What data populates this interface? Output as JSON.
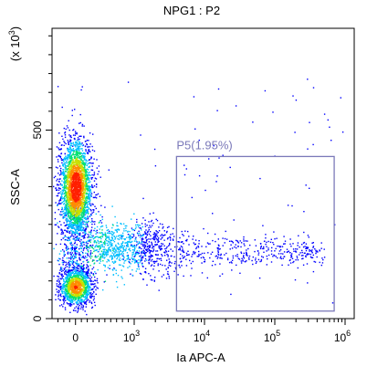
{
  "chart_data": {
    "type": "scatter",
    "title": "NPG1 : P2",
    "xlabel": "Ia APC-A",
    "ylabel": "SSC-A",
    "y_multiplier": "(x 10",
    "y_multiplier_exp": "3",
    "y_multiplier_close": ")",
    "x_scale": "biexponential",
    "y_scale": "linear",
    "xlim": [
      -400,
      1000000
    ],
    "ylim": [
      0,
      770
    ],
    "x_ticks": [
      {
        "value": 0,
        "base": "0",
        "exp": ""
      },
      {
        "value": 1000,
        "base": "10",
        "exp": "3"
      },
      {
        "value": 10000,
        "base": "10",
        "exp": "4"
      },
      {
        "value": 100000,
        "base": "10",
        "exp": "5"
      },
      {
        "value": 1000000,
        "base": "10",
        "exp": "6"
      }
    ],
    "y_ticks": [
      {
        "value": 0,
        "label": "0"
      },
      {
        "value": 500,
        "label": "500"
      }
    ],
    "populations": [
      {
        "name": "upper cluster",
        "x_center": 0,
        "y_center": 350,
        "count": 2600,
        "color_scale": "density"
      },
      {
        "name": "lower cluster",
        "x_center": 0,
        "y_center": 85,
        "count": 1300,
        "color_scale": "density"
      },
      {
        "name": "bridge",
        "x_from": 200,
        "x_to": 3000,
        "y_center": 190,
        "count": 900,
        "color_scale": "density"
      },
      {
        "name": "positive tail",
        "x_from": 3000,
        "x_to": 600000,
        "y_center": 180,
        "count": 420,
        "color_scale": "density"
      }
    ],
    "gate": {
      "name": "P5",
      "label": "P5(1.95%)",
      "percent": 1.95,
      "x_range": [
        4000,
        700000
      ],
      "y_range": [
        20,
        430
      ],
      "color": "#7b79b9"
    },
    "density_colors": [
      "#0000ff",
      "#00bfff",
      "#00e070",
      "#c8e000",
      "#ff8c00",
      "#ff2000"
    ]
  }
}
